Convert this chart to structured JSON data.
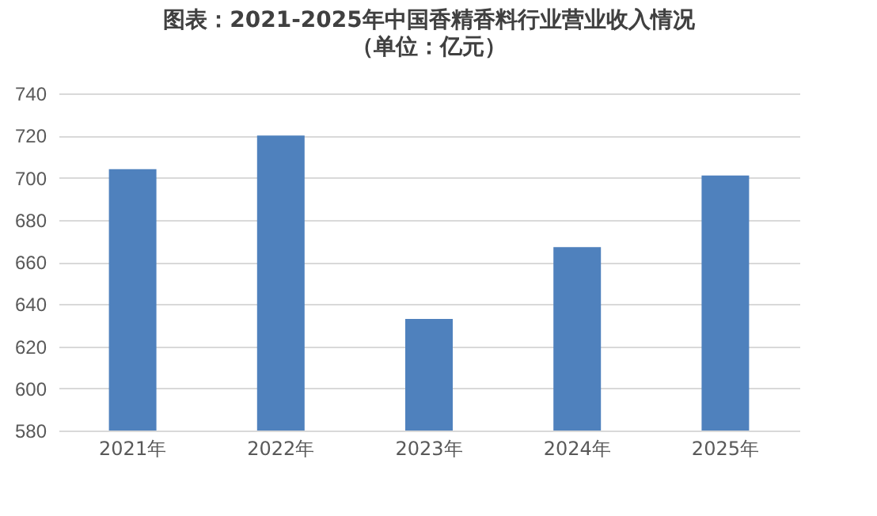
{
  "chart_data": {
    "type": "bar",
    "title": "图表：2021-2025年中国香精香料行业营业收入情况",
    "subtitle": "（单位：亿元）",
    "categories": [
      "2021年",
      "2022年",
      "2023年",
      "2024年",
      "2025年"
    ],
    "values": [
      704,
      720,
      633,
      667,
      701
    ],
    "color": "#4f81bd",
    "ylim": [
      580,
      740
    ],
    "yticks": [
      580,
      600,
      620,
      640,
      660,
      680,
      700,
      720,
      740
    ],
    "grid": "y"
  }
}
